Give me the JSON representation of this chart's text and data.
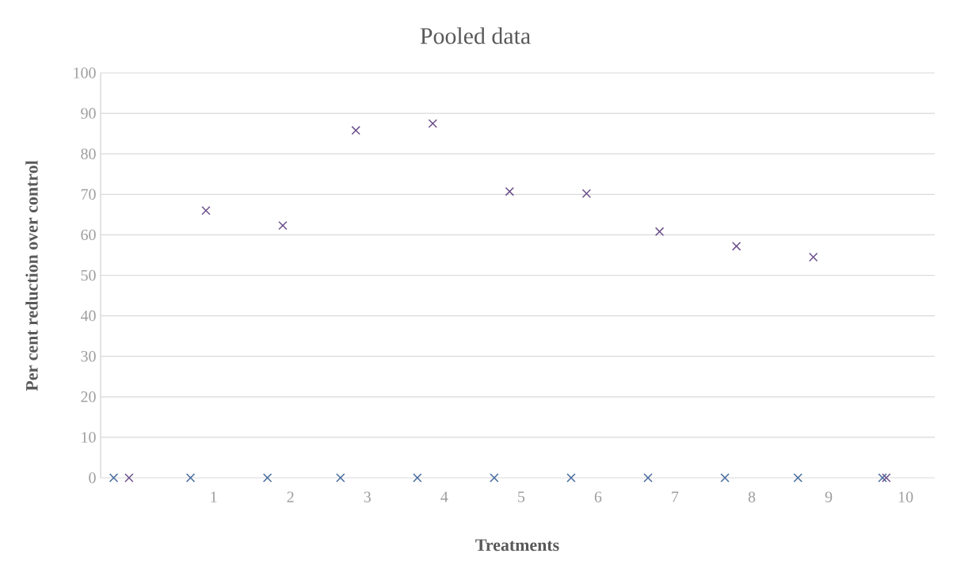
{
  "chart_data": {
    "type": "scatter",
    "title": "Pooled data",
    "xlabel": "Treatments",
    "ylabel": "Per cent reduction over control",
    "series": [
      {
        "color": "#44699b",
        "x": [
          -0.3,
          0.7,
          1.7,
          2.65,
          3.65,
          4.65,
          5.65,
          6.65,
          7.65,
          8.6,
          9.7
        ],
        "values": [
          0,
          0,
          0,
          0,
          0,
          0,
          0,
          0,
          0,
          0,
          0
        ]
      },
      {
        "color": "#6b4f8a",
        "x": [
          -0.1,
          0.9,
          1.9,
          2.85,
          3.85,
          4.85,
          5.85,
          6.8,
          7.8,
          8.8,
          9.75
        ],
        "values": [
          0,
          66,
          62.3,
          85.8,
          87.5,
          70.7,
          70.2,
          60.8,
          57.2,
          54.5,
          0
        ]
      }
    ],
    "xlim": [
      -0.47,
      10.38
    ],
    "xticks": [
      1,
      2,
      3,
      4,
      5,
      6,
      7,
      8,
      9,
      10
    ],
    "ylim": [
      0,
      100
    ],
    "yticks": [
      0,
      10,
      20,
      30,
      40,
      50,
      60,
      70,
      80,
      90,
      100
    ],
    "grid": "y",
    "marker": "cross"
  }
}
